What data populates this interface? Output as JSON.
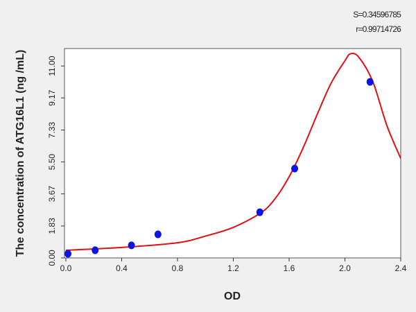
{
  "chart_data": {
    "type": "scatter",
    "y_label": "The concentration of ATG16L1 (ng /mL)",
    "x_label": "OD",
    "annotations": [
      "S=0.34596785",
      "r=0.99714726"
    ],
    "xlim": [
      0,
      2.4
    ],
    "ylim": [
      0,
      12
    ],
    "xticks": [
      {
        "value": 0,
        "label": "0.0"
      },
      0.4,
      0.8,
      1.2,
      1.6,
      {
        "value": 2,
        "label": "2.0"
      },
      2.4
    ],
    "yticks": [
      {
        "value": 0,
        "label": "0.00"
      },
      1.83,
      3.67,
      {
        "value": 5.5,
        "label": "5.50"
      },
      7.33,
      9.17,
      {
        "value": 11,
        "label": "11.00"
      }
    ],
    "grid": false,
    "points": {
      "color": "#0a14e6",
      "x": [
        0.015,
        0.21,
        0.47,
        0.66,
        1.39,
        1.64,
        2.18
      ],
      "values": [
        0.24,
        0.44,
        0.72,
        1.35,
        2.62,
        5.12,
        10.09
      ]
    },
    "curve": {
      "color": "#e01010",
      "x": [
        0,
        0.4,
        0.8,
        1.0,
        1.2,
        1.4,
        1.5,
        1.6,
        1.7,
        1.8,
        1.9,
        2.0,
        2.04,
        2.1,
        2.2,
        2.3,
        2.4
      ],
      "values": [
        0.44,
        0.6,
        0.87,
        1.25,
        1.75,
        2.6,
        3.4,
        4.65,
        6.3,
        8.2,
        10.0,
        11.3,
        11.7,
        11.5,
        10.1,
        7.6,
        5.7
      ]
    }
  }
}
